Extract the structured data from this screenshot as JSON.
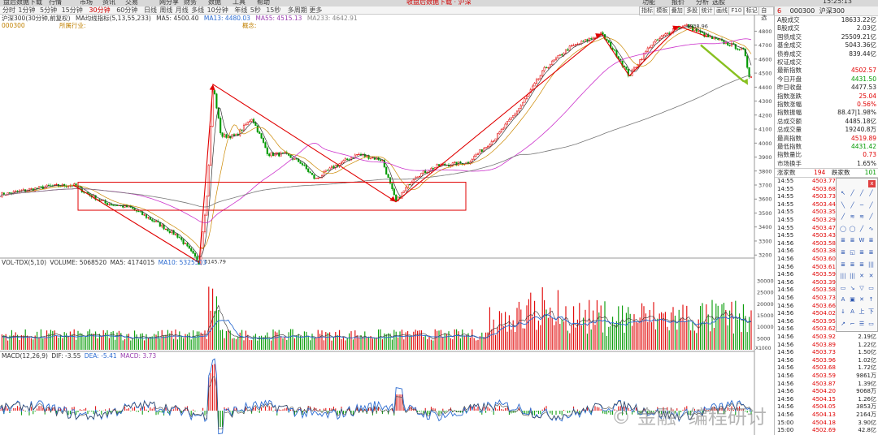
{
  "menubar": {
    "items": [
      "盘后数据下载",
      "行情",
      "市场",
      "资讯",
      "交易",
      "网分享",
      "财务",
      "数据",
      "工具",
      "帮助"
    ],
    "notice": "收盘后数据下载 · 沪深",
    "right_items": [
      "功能",
      "报价",
      "分析",
      "选股"
    ],
    "clock": "15:25:13"
  },
  "toolbar": {
    "periods": [
      "分时",
      "1分钟",
      "5分钟",
      "15分钟",
      "30分钟",
      "60分钟",
      "日线",
      "周线",
      "月线",
      "多线",
      "10分钟",
      "年线",
      "5秒",
      "15秒",
      "多周期",
      "更多"
    ],
    "active_index": 4,
    "right_buttons": [
      "指标",
      "模板",
      "叠加",
      "多股",
      "统计",
      "画线",
      "F10",
      "标记",
      "自选"
    ]
  },
  "chart_header": {
    "symbol_line": "沪深300(30分钟,前复权)",
    "ma_label": "MA均线指标(5,13,55,233)",
    "ma5": "MA5: 4500.40",
    "ma13": "MA13: 4480.03",
    "ma55": "MA55: 4515.13",
    "ma233": "MA233: 4642.91",
    "code": "000300",
    "industry": "所属行业:",
    "concept": "概念:"
  },
  "volume_header": {
    "label": "VOL-TDX(5,10)",
    "volume": "VOLUME: 5068520",
    "ma5": "MA5: 4174015",
    "ma10": "MA10: 5325503"
  },
  "macd_header": {
    "label": "MACD(12,26,9)",
    "dif": "DIF: -3.55",
    "dea": "DEA: -5.41",
    "macd": "MACD: 3.73"
  },
  "chart_annotations": {
    "low_label": "3145.79",
    "high_label": "4838.96",
    "vol_unit": "X1000"
  },
  "price_axis": [
    "4800",
    "4700",
    "4600",
    "4500",
    "4400",
    "4300",
    "4200",
    "4100",
    "4000",
    "3900",
    "3800",
    "3700",
    "3600",
    "3500",
    "3400",
    "3300",
    "3200"
  ],
  "volume_axis": [
    "30000",
    "25000",
    "20000",
    "15000",
    "10000",
    "5000"
  ],
  "right_panel": {
    "code": "000300",
    "name": "沪深300",
    "quote_rows": [
      {
        "label": "A股成交",
        "value": "18633.22亿",
        "color": "black"
      },
      {
        "label": "B股成交",
        "value": "2.03亿",
        "color": "black"
      },
      {
        "label": "国债成交",
        "value": "25509.21亿",
        "color": "black"
      },
      {
        "label": "基金成交",
        "value": "5043.36亿",
        "color": "black"
      },
      {
        "label": "债券成交",
        "value": "839.44亿",
        "color": "black"
      },
      {
        "label": "权证成交",
        "value": "",
        "color": "black"
      },
      {
        "label": "最新指数",
        "value": "4502.57",
        "color": "red"
      },
      {
        "label": "今日开盘",
        "value": "4431.50",
        "color": "green"
      },
      {
        "label": "昨日收盘",
        "value": "4477.53",
        "color": "black"
      },
      {
        "label": "指数涨跌",
        "value": "25.04",
        "color": "red"
      },
      {
        "label": "指数涨幅",
        "value": "0.56%",
        "color": "red"
      },
      {
        "label": "指数振幅",
        "value": "88.47|1.98%",
        "color": "black"
      },
      {
        "label": "总成交额",
        "value": "4485.18亿",
        "color": "black"
      },
      {
        "label": "总成交量",
        "value": "19240.8万",
        "color": "black"
      },
      {
        "label": "最高指数",
        "value": "4519.89",
        "color": "red"
      },
      {
        "label": "最低指数",
        "value": "4431.42",
        "color": "green"
      },
      {
        "label": "指数量比",
        "value": "0.73",
        "color": "red"
      },
      {
        "label": "市场换手",
        "value": "1.65%",
        "color": "black"
      }
    ],
    "up_label": "涨家数",
    "up_count": "194",
    "down_label": "跌家数",
    "down_count": "101",
    "ticks": [
      {
        "t": "14:55",
        "p": "4503.77",
        "v": ""
      },
      {
        "t": "14:55",
        "p": "4503.68",
        "v": ""
      },
      {
        "t": "14:55",
        "p": "4503.73",
        "v": ""
      },
      {
        "t": "14:55",
        "p": "4503.44",
        "v": ""
      },
      {
        "t": "14:55",
        "p": "4503.35",
        "v": ""
      },
      {
        "t": "14:55",
        "p": "4503.29",
        "v": ""
      },
      {
        "t": "14:55",
        "p": "4503.47",
        "v": ""
      },
      {
        "t": "14:55",
        "p": "4503.43",
        "v": ""
      },
      {
        "t": "14:56",
        "p": "4503.58",
        "v": ""
      },
      {
        "t": "14:56",
        "p": "4503.38",
        "v": ""
      },
      {
        "t": "14:56",
        "p": "4503.60",
        "v": ""
      },
      {
        "t": "14:56",
        "p": "4503.61",
        "v": ""
      },
      {
        "t": "14:56",
        "p": "4503.59",
        "v": ""
      },
      {
        "t": "14:56",
        "p": "4503.39",
        "v": ""
      },
      {
        "t": "14:56",
        "p": "4503.58",
        "v": ""
      },
      {
        "t": "14:56",
        "p": "4503.73",
        "v": ""
      },
      {
        "t": "14:56",
        "p": "4503.66",
        "v": ""
      },
      {
        "t": "14:56",
        "p": "4504.02",
        "v": ""
      },
      {
        "t": "14:56",
        "p": "4503.95",
        "v": ""
      },
      {
        "t": "14:56",
        "p": "4503.62",
        "v": ""
      },
      {
        "t": "14:56",
        "p": "4503.92",
        "v": "2.19亿"
      },
      {
        "t": "14:56",
        "p": "4503.89",
        "v": "1.22亿"
      },
      {
        "t": "14:56",
        "p": "4503.73",
        "v": "1.50亿"
      },
      {
        "t": "14:56",
        "p": "4503.96",
        "v": "1.02亿"
      },
      {
        "t": "14:56",
        "p": "4503.68",
        "v": "1.72亿"
      },
      {
        "t": "14:56",
        "p": "4503.59",
        "v": "9861万"
      },
      {
        "t": "14:56",
        "p": "4503.87",
        "v": "1.39亿"
      },
      {
        "t": "14:56",
        "p": "4504.20",
        "v": "9068万"
      },
      {
        "t": "14:56",
        "p": "4504.15",
        "v": "1.26亿"
      },
      {
        "t": "14:56",
        "p": "4504.05",
        "v": "3853万"
      },
      {
        "t": "14:56",
        "p": "4504.13",
        "v": "2164万"
      },
      {
        "t": "15:00",
        "p": "4504.18",
        "v": "3.90亿"
      },
      {
        "t": "15:00",
        "p": "4502.69",
        "v": "42.8亿"
      }
    ]
  },
  "draw_tools": {
    "close": "x",
    "tools": [
      "↖",
      "╱",
      "╱",
      "╱",
      "╲",
      "╱",
      "─",
      "╱",
      "╱",
      "≋",
      "≋",
      "╱",
      "◯",
      "◯",
      "╱",
      "∿",
      "≣",
      "≣",
      "W",
      "≣",
      "≣",
      "◱",
      "≣",
      "≣",
      "≣",
      "≣",
      "≣",
      "|||",
      "|||",
      "|||",
      "✕",
      "✕",
      "▭",
      "↘",
      "▽",
      "▭",
      "A",
      "▣",
      "✕",
      "↑",
      "↓",
      "A",
      "上",
      "下",
      "↗",
      "⌐",
      "☰",
      "▭"
    ]
  },
  "watermark": "© 金融· 编程研讨",
  "colors": {
    "up": "#e00000",
    "down": "#009900",
    "ma5": "#333333",
    "ma13": "#cc8800",
    "ma55": "#cc33cc",
    "ma233": "#3399ff",
    "annotation": "#e00000",
    "arrow": "#88c020",
    "dif": "#2a6ad0",
    "dea": "#444444"
  },
  "chart_data": {
    "type": "line",
    "title": "沪深300(30分钟,前复权)",
    "series": [
      {
        "name": "沪深300",
        "x": [
          0,
          30,
          60,
          90,
          110,
          130,
          160,
          190,
          220,
          245,
          255,
          262,
          272,
          290,
          310,
          330,
          350,
          370,
          388,
          410,
          440,
          470,
          487,
          510,
          540,
          575,
          610,
          640,
          670,
          700,
          740,
          760,
          774,
          800,
          830,
          845,
          870,
          900,
          915,
          922,
          926
        ],
        "values": [
          3630,
          3660,
          3690,
          3700,
          3630,
          3570,
          3540,
          3440,
          3330,
          3146,
          3650,
          4420,
          4050,
          4050,
          4180,
          3920,
          3920,
          3860,
          3740,
          3830,
          3920,
          3880,
          3580,
          3760,
          3840,
          3860,
          4040,
          4260,
          4530,
          4680,
          4780,
          4620,
          4480,
          4700,
          4820,
          4839,
          4760,
          4700,
          4660,
          4470,
          4502
        ]
      }
    ],
    "xlabel": "",
    "ylabel": "",
    "ylim": [
      3120,
      4860
    ]
  }
}
